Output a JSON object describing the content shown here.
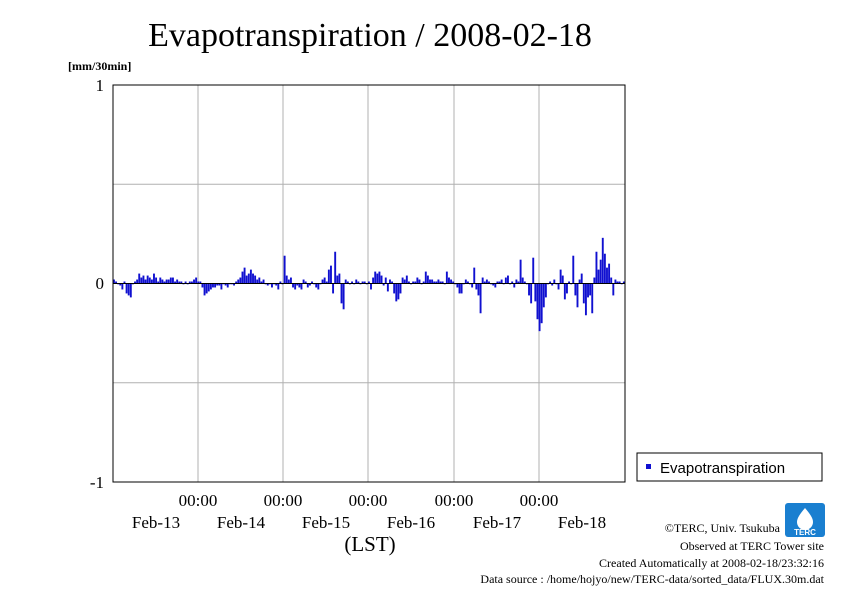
{
  "chart_data": {
    "type": "bar",
    "title": "Evapotranspiration / 2008-02-18",
    "ylabel": "[mm/30min]",
    "xlabel": "(LST)",
    "ylim": [
      -1,
      1
    ],
    "yticks": [
      "1",
      "0",
      "-1"
    ],
    "x_time_labels": [
      "00:00",
      "00:00",
      "00:00",
      "00:00",
      "00:00"
    ],
    "x_date_labels": [
      "Feb-13",
      "Feb-14",
      "Feb-15",
      "Feb-16",
      "Feb-17",
      "Feb-18"
    ],
    "grid": true,
    "legend_position": "right",
    "series": [
      {
        "name": "Evapotranspiration",
        "color": "#1010d0",
        "values": [
          0.02,
          0.01,
          0.0,
          -0.01,
          -0.03,
          0.01,
          -0.05,
          -0.06,
          -0.07,
          0.0,
          0.01,
          0.02,
          0.05,
          0.03,
          0.04,
          0.02,
          0.04,
          0.03,
          0.02,
          0.05,
          0.03,
          0.01,
          0.03,
          0.02,
          0.01,
          0.02,
          0.02,
          0.03,
          0.03,
          0.01,
          0.02,
          0.01,
          0.01,
          0.0,
          0.01,
          0.0,
          0.01,
          0.01,
          0.02,
          0.03,
          0.01,
          0.01,
          -0.02,
          -0.06,
          -0.05,
          -0.04,
          -0.03,
          -0.02,
          -0.02,
          -0.01,
          -0.01,
          -0.03,
          0.0,
          -0.01,
          -0.02,
          0.0,
          0.0,
          -0.01,
          0.01,
          0.02,
          0.03,
          0.06,
          0.08,
          0.04,
          0.05,
          0.07,
          0.05,
          0.04,
          0.02,
          0.03,
          0.01,
          0.02,
          0.0,
          -0.01,
          0.0,
          -0.02,
          0.0,
          -0.01,
          -0.03,
          0.01,
          0.0,
          0.14,
          0.04,
          0.02,
          0.03,
          -0.02,
          -0.03,
          -0.01,
          -0.02,
          -0.03,
          0.02,
          0.01,
          -0.02,
          -0.01,
          0.01,
          0.0,
          -0.02,
          -0.03,
          0.0,
          0.02,
          0.03,
          0.01,
          0.07,
          0.09,
          -0.05,
          0.16,
          0.04,
          0.05,
          -0.1,
          -0.13,
          0.02,
          0.01,
          0.0,
          0.01,
          0.0,
          0.02,
          0.01,
          0.0,
          0.01,
          0.01,
          0.0,
          0.01,
          -0.03,
          0.03,
          0.06,
          0.05,
          0.06,
          0.04,
          -0.01,
          0.03,
          -0.04,
          0.02,
          0.01,
          -0.05,
          -0.09,
          -0.08,
          -0.05,
          0.03,
          0.02,
          0.04,
          0.01,
          0.0,
          0.01,
          0.01,
          0.03,
          0.02,
          0.0,
          0.01,
          0.06,
          0.04,
          0.02,
          0.02,
          0.01,
          0.01,
          0.02,
          0.01,
          0.01,
          0.0,
          0.06,
          0.03,
          0.02,
          0.01,
          0.0,
          -0.02,
          -0.05,
          -0.05,
          0.0,
          0.02,
          0.01,
          0.0,
          -0.02,
          0.08,
          -0.03,
          -0.06,
          -0.15,
          0.03,
          0.01,
          0.02,
          0.01,
          0.0,
          -0.01,
          -0.02,
          0.01,
          0.01,
          0.02,
          0.0,
          0.03,
          0.04,
          0.0,
          0.01,
          -0.02,
          0.02,
          0.01,
          0.12,
          0.03,
          0.01,
          0.0,
          -0.06,
          -0.1,
          0.13,
          -0.09,
          -0.18,
          -0.24,
          -0.2,
          -0.12,
          -0.07,
          0.0,
          0.01,
          -0.01,
          0.02,
          0.0,
          -0.03,
          0.07,
          0.04,
          -0.08,
          -0.05,
          0.01,
          0.0,
          0.14,
          -0.06,
          -0.12,
          0.02,
          0.05,
          -0.1,
          -0.16,
          -0.07,
          -0.06,
          -0.15,
          0.03,
          0.16,
          0.07,
          0.12,
          0.23,
          0.15,
          0.08,
          0.1,
          0.03,
          -0.06,
          0.02,
          0.01,
          0.01,
          0.0,
          0.01
        ]
      }
    ]
  },
  "footer": {
    "copyright": "©TERC, Univ. Tsukuba",
    "observed": "Observed at TERC Tower site",
    "created": "Created Automatically at 2008-02-18/23:32:16",
    "source": "Data source : /home/hojyo/new/TERC-data/sorted_data/FLUX.30m.dat"
  },
  "logo": {
    "text": "TERC",
    "color": "#1a7fd0"
  }
}
